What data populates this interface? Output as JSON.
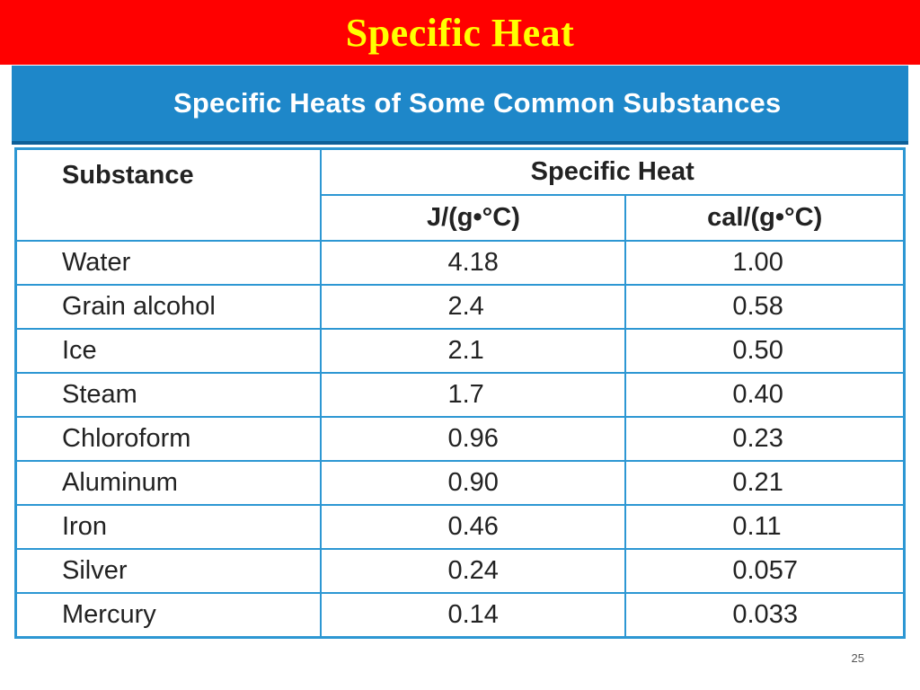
{
  "slide": {
    "title": "Specific Heat",
    "page_number": "25"
  },
  "figure": {
    "caption": "Specific Heats of Some Common Substances",
    "headers": {
      "substance": "Substance",
      "specific_heat": "Specific Heat",
      "unit_j": "J/(g•°C)",
      "unit_cal": "cal/(g•°C)"
    },
    "rows": [
      {
        "substance": "Water",
        "j": "4.18",
        "cal": "1.00"
      },
      {
        "substance": "Grain alcohol",
        "j": "2.4",
        "cal": "0.58"
      },
      {
        "substance": "Ice",
        "j": "2.1",
        "cal": "0.50"
      },
      {
        "substance": "Steam",
        "j": "1.7",
        "cal": "0.40"
      },
      {
        "substance": "Chloroform",
        "j": "0.96",
        "cal": "0.23"
      },
      {
        "substance": "Aluminum",
        "j": "0.90",
        "cal": "0.21"
      },
      {
        "substance": "Iron",
        "j": "0.46",
        "cal": "0.11"
      },
      {
        "substance": "Silver",
        "j": "0.24",
        "cal": "0.057"
      },
      {
        "substance": "Mercury",
        "j": "0.14",
        "cal": "0.033"
      }
    ]
  },
  "colors": {
    "title_bar": "#ff0000",
    "title_text": "#ffff00",
    "header_band": "#1e87c9",
    "table_border": "#2d97d3"
  }
}
